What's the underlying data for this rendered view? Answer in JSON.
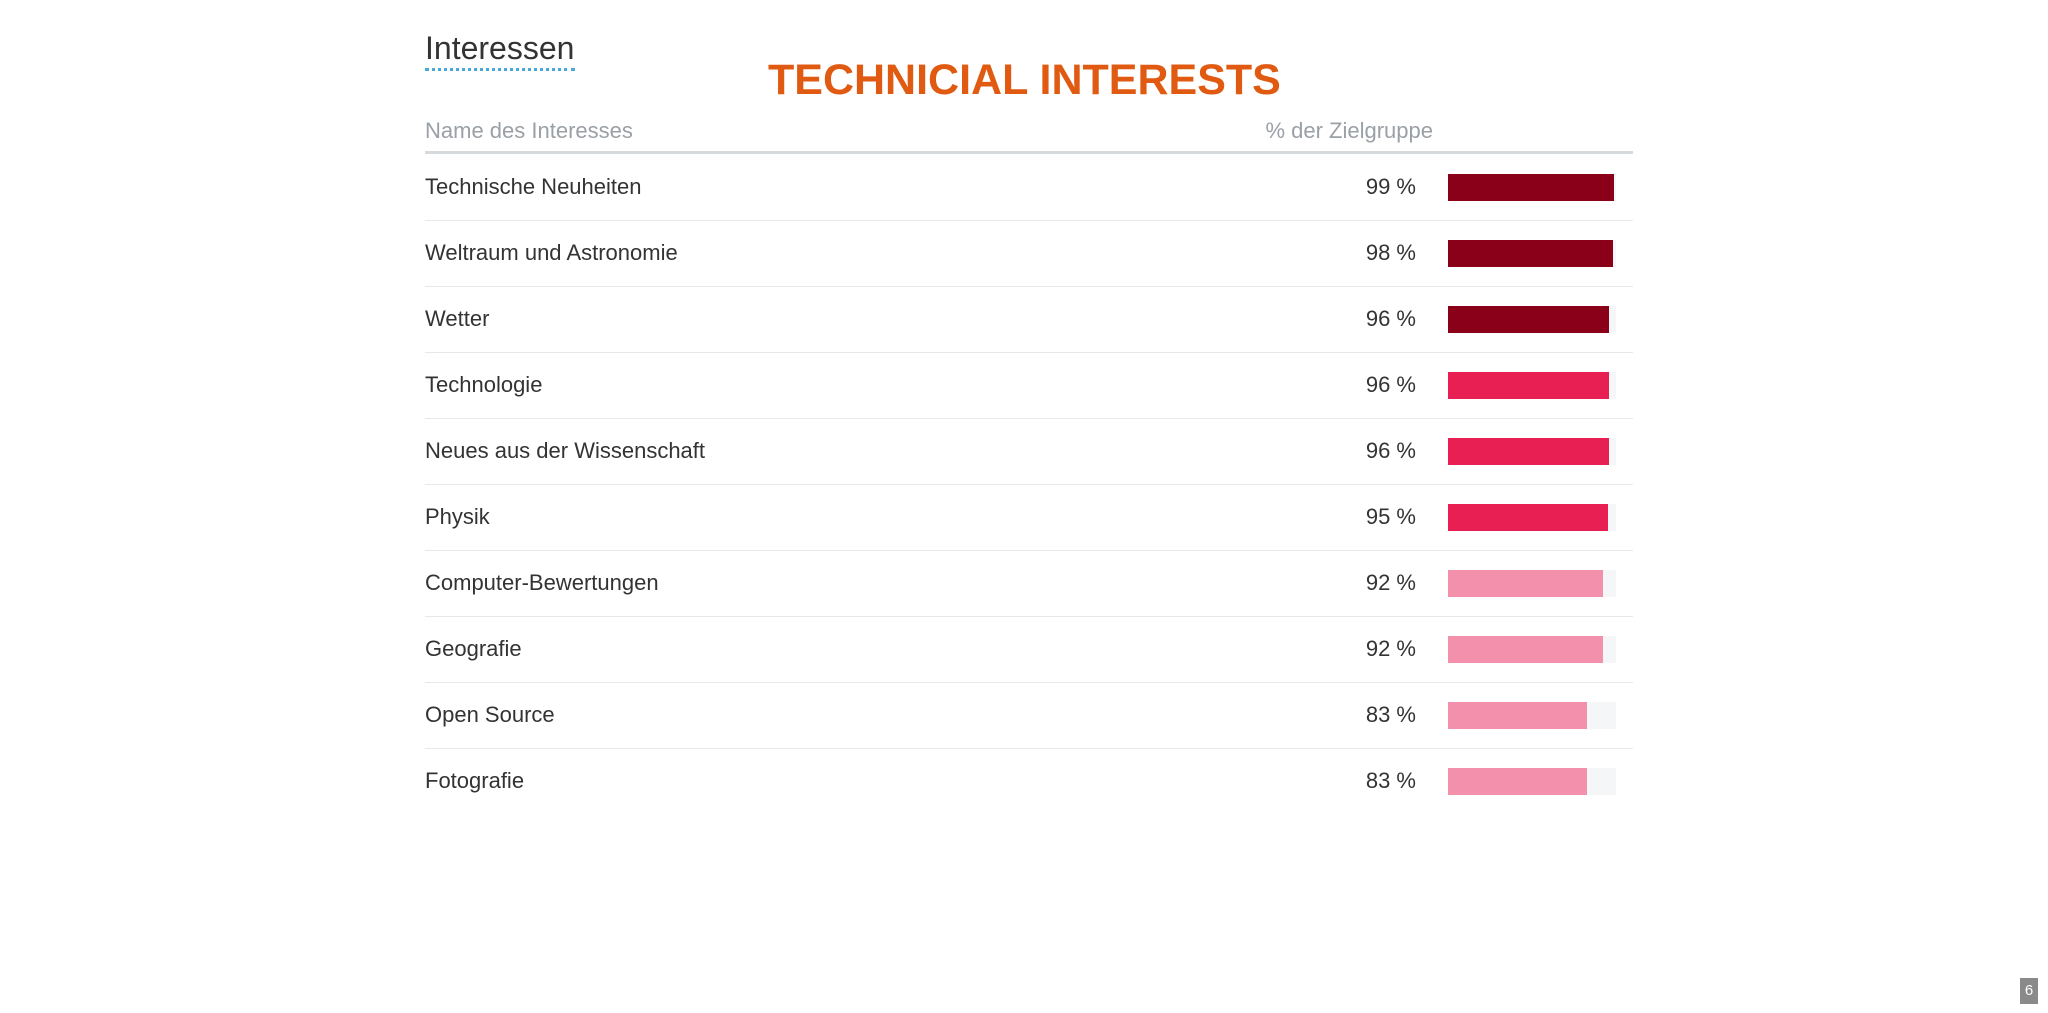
{
  "section_title": "Interessen",
  "overlay_title": "TECHNICIAL INTERESTS",
  "columns": {
    "name": "Name des Interesses",
    "percent": "% der Zielgruppe"
  },
  "slide_number": "6",
  "colors": {
    "high": "#8b0019",
    "mid": "#e81f52",
    "low": "#f391ad",
    "track": "#f4f6f8",
    "accent_underline": "#4aa8d8",
    "overlay_title": "#e05a12"
  },
  "chart_data": {
    "type": "bar",
    "orientation": "horizontal",
    "xlim": [
      0,
      100
    ],
    "categories": [
      "Technische Neuheiten",
      "Weltraum und Astronomie",
      "Wetter",
      "Technologie",
      "Neues aus der Wissenschaft",
      "Physik",
      "Computer-Bewertungen",
      "Geografie",
      "Open Source",
      "Fotografie"
    ],
    "values": [
      99,
      98,
      96,
      96,
      96,
      95,
      92,
      92,
      83,
      83
    ],
    "value_labels": [
      "99 %",
      "98 %",
      "96 %",
      "96 %",
      "96 %",
      "95 %",
      "92 %",
      "92 %",
      "83 %",
      "83 %"
    ],
    "bar_color_levels": [
      "high",
      "high",
      "high",
      "mid",
      "mid",
      "mid",
      "low",
      "low",
      "low",
      "low"
    ]
  }
}
